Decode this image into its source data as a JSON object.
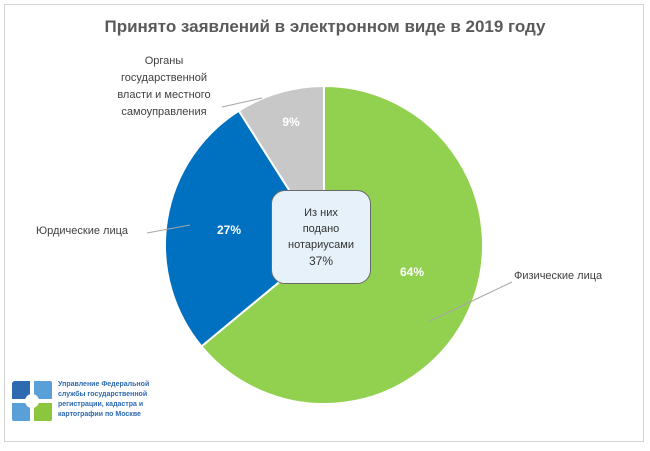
{
  "chart_data": {
    "type": "pie",
    "title": "Принято заявлений в электронном виде в 2019 году",
    "categories": [
      "Физические лица",
      "Юрдические лица",
      "Органы государственной власти и местного самоуправления"
    ],
    "values": [
      64,
      27,
      9
    ],
    "data_labels": [
      "64%",
      "27%",
      "9%"
    ],
    "colors": [
      "#92d050",
      "#0070c0",
      "#c8c8c8"
    ],
    "center_note": {
      "lines": [
        "Из них",
        "подано",
        "нотариусами"
      ],
      "value": "37%"
    }
  },
  "labels": {
    "organy_lines": [
      "Органы",
      "государственной",
      "власти и местного",
      "самоуправления"
    ]
  },
  "footer": {
    "org_lines": [
      "Управление Федеральной",
      "службы государственной",
      "регистрации, кадастра и",
      "картографии по Москве"
    ]
  }
}
